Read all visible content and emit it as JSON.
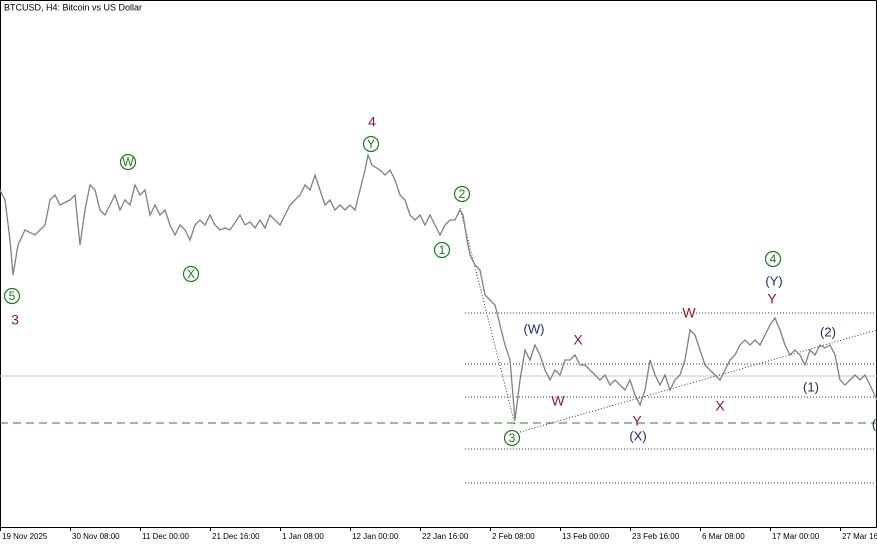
{
  "chart_data": {
    "type": "line",
    "title": "BTCUSD, H4:  Bitcoin vs US Dollar",
    "x": [
      0,
      5,
      10,
      13,
      18,
      25,
      35,
      45,
      50,
      55,
      60,
      70,
      75,
      80,
      85,
      90,
      95,
      100,
      105,
      110,
      115,
      120,
      125,
      130,
      135,
      140,
      145,
      150,
      155,
      160,
      165,
      170,
      175,
      180,
      185,
      190,
      195,
      200,
      205,
      210,
      215,
      220,
      225,
      230,
      240,
      245,
      250,
      255,
      260,
      265,
      270,
      280,
      285,
      290,
      295,
      300,
      305,
      310,
      315,
      320,
      325,
      330,
      335,
      340,
      345,
      350,
      355,
      360,
      365,
      368,
      372,
      380,
      385,
      390,
      395,
      400,
      405,
      410,
      415,
      420,
      425,
      430,
      435,
      440,
      445,
      450,
      455,
      460,
      463,
      467,
      470,
      475,
      480,
      485,
      490,
      495,
      500,
      505,
      510,
      515,
      520,
      525,
      530,
      535,
      540,
      545,
      550,
      555,
      560,
      565,
      570,
      575,
      580,
      585,
      590,
      595,
      600,
      605,
      610,
      615,
      620,
      625,
      630,
      635,
      640,
      645,
      650,
      655,
      660,
      665,
      670,
      675,
      680,
      685,
      690,
      695,
      700,
      705,
      710,
      715,
      720,
      725,
      730,
      735,
      740,
      745,
      750,
      755,
      760,
      765,
      770,
      775,
      780,
      785,
      790,
      795,
      800,
      805,
      810,
      815,
      820,
      825,
      830,
      835,
      840,
      845,
      850,
      855,
      860,
      865,
      870,
      877
    ],
    "series": [
      {
        "color": "#808080",
        "values": [
          337,
          327,
          287,
          252,
          282,
          297,
          292,
          302,
          327,
          332,
          322,
          327,
          332,
          282,
          317,
          342,
          337,
          317,
          312,
          322,
          332,
          317,
          327,
          322,
          342,
          332,
          337,
          312,
          322,
          312,
          317,
          302,
          292,
          302,
          297,
          287,
          302,
          307,
          302,
          312,
          302,
          297,
          299,
          297,
          312,
          302,
          305,
          299,
          307,
          299,
          312,
          302,
          312,
          322,
          327,
          332,
          342,
          337,
          352,
          337,
          322,
          327,
          317,
          322,
          317,
          322,
          317,
          337,
          357,
          372,
          362,
          357,
          352,
          357,
          347,
          332,
          327,
          312,
          307,
          312,
          302,
          312,
          302,
          292,
          302,
          307,
          307,
          317,
          312,
          287,
          272,
          262,
          257,
          232,
          227,
          222,
          202,
          182,
          167,
          107,
          147,
          177,
          167,
          182,
          172,
          157,
          147,
          157,
          152,
          167,
          167,
          172,
          162,
          162,
          157,
          152,
          147,
          152,
          142,
          147,
          142,
          137,
          147,
          132,
          122,
          137,
          167,
          152,
          142,
          152,
          137,
          147,
          152,
          167,
          197,
          192,
          177,
          162,
          157,
          152,
          147,
          157,
          167,
          172,
          182,
          187,
          182,
          187,
          182,
          192,
          202,
          209,
          197,
          182,
          172,
          177,
          172,
          162,
          177,
          172,
          182,
          179,
          182,
          172,
          147,
          142,
          147,
          152,
          147,
          152,
          142,
          127
        ]
      }
    ],
    "xlim": [
      0,
      877
    ],
    "ylim": [
      0,
      527
    ],
    "xticks": [
      {
        "value": 0,
        "label": "19 Nov 2025"
      },
      {
        "value": 70,
        "label": "30 Nov 08:00"
      },
      {
        "value": 140,
        "label": "11 Dec 00:00"
      },
      {
        "value": 210,
        "label": "21 Dec 16:00"
      },
      {
        "value": 280,
        "label": "1 Jan 08:00"
      },
      {
        "value": 350,
        "label": "12 Jan 00:00"
      },
      {
        "value": 420,
        "label": "22 Jan 16:00"
      },
      {
        "value": 490,
        "label": "2 Feb 08:00"
      },
      {
        "value": 560,
        "label": "13 Feb 00:00"
      },
      {
        "value": 630,
        "label": "23 Feb 16:00"
      },
      {
        "value": 700,
        "label": "6 Mar 08:00"
      },
      {
        "value": 770,
        "label": "17 Mar 00:00"
      },
      {
        "value": 840,
        "label": "27 Mar 16:00"
      }
    ],
    "levels": [
      214,
      163,
      130,
      78,
      44
    ],
    "price_line": 151,
    "support_line": 104,
    "annotations": [
      "4",
      "Y",
      "W",
      "5",
      "3",
      "X",
      "2",
      "1",
      "(W)",
      "X",
      "W",
      "3",
      "Y",
      "(X)",
      "W",
      "X",
      "4",
      "(Y)",
      "Y",
      "(2)",
      "(1)",
      "("
    ]
  }
}
